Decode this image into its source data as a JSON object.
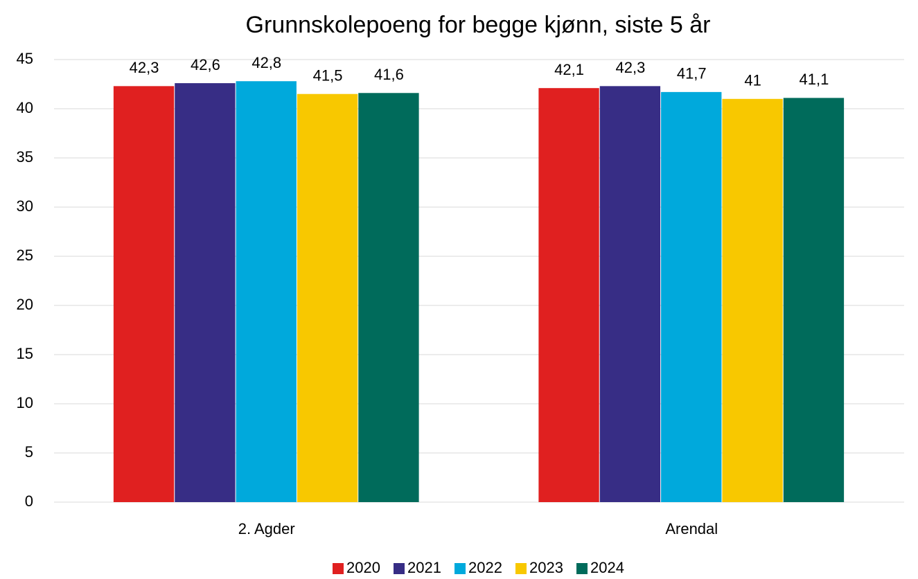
{
  "chart_data": {
    "type": "bar",
    "title": "Grunnskolepoeng for begge kjønn, siste 5 år",
    "categories": [
      "2. Agder",
      "Arendal"
    ],
    "series": [
      {
        "name": "2020",
        "color": "#e02020",
        "values": [
          42.3,
          42.1
        ],
        "value_labels": [
          "42,3",
          "42,1"
        ]
      },
      {
        "name": "2021",
        "color": "#372d85",
        "values": [
          42.6,
          42.3
        ],
        "value_labels": [
          "42,6",
          "42,3"
        ]
      },
      {
        "name": "2022",
        "color": "#00a9dc",
        "values": [
          42.8,
          41.7
        ],
        "value_labels": [
          "42,8",
          "41,7"
        ]
      },
      {
        "name": "2023",
        "color": "#f8c800",
        "values": [
          41.5,
          41
        ],
        "value_labels": [
          "41,5",
          "41"
        ]
      },
      {
        "name": "2024",
        "color": "#006b5b",
        "values": [
          41.6,
          41.1
        ],
        "value_labels": [
          "41,6",
          "41,1"
        ]
      }
    ],
    "ylim": [
      0,
      45
    ],
    "yticks": [
      0,
      5,
      10,
      15,
      20,
      25,
      30,
      35,
      40,
      45
    ],
    "grid": true,
    "legend": "bottom"
  }
}
